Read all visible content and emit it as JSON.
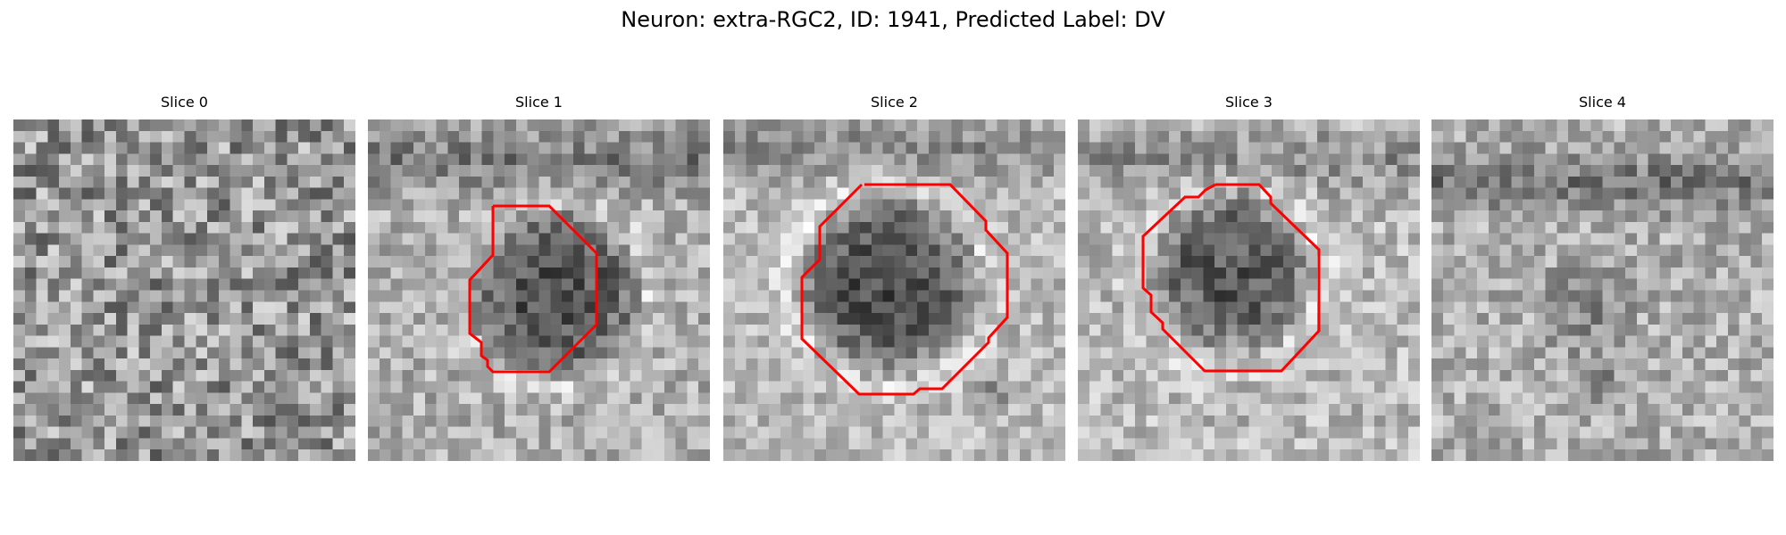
{
  "figure": {
    "title": "Neuron: extra-RGC2, ID: 1941, Predicted Label: DV"
  },
  "contour_color": "#ff0000",
  "panels": [
    {
      "title": "Slice 0",
      "has_contour": false
    },
    {
      "title": "Slice 1",
      "has_contour": true
    },
    {
      "title": "Slice 2",
      "has_contour": true
    },
    {
      "title": "Slice 3",
      "has_contour": true
    },
    {
      "title": "Slice 4",
      "has_contour": false
    }
  ]
}
